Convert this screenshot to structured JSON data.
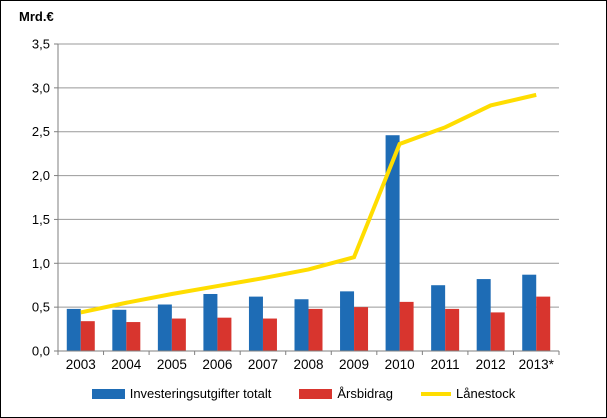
{
  "colors": {
    "bar_investeringar": "#1E6CB5",
    "bar_arsbidrag": "#D8352E",
    "line_lanestock": "#FFDD00",
    "grid": "#999999",
    "axis": "#7F7F7F",
    "text": "#000000"
  },
  "chart_data": {
    "type": "bar",
    "subtype": "grouped-bars-with-line",
    "title": "",
    "ylabel": "Mrd.€",
    "xlabel": "",
    "categories": [
      "2003",
      "2004",
      "2005",
      "2006",
      "2007",
      "2008",
      "2009",
      "2010",
      "2011",
      "2012",
      "2013*"
    ],
    "series": [
      {
        "name": "Investeringsutgifter totalt",
        "type": "bar",
        "color": "#1E6CB5",
        "values": [
          0.48,
          0.47,
          0.53,
          0.65,
          0.62,
          0.59,
          0.68,
          2.46,
          0.75,
          0.82,
          0.87
        ]
      },
      {
        "name": "Årsbidrag",
        "type": "bar",
        "color": "#D8352E",
        "values": [
          0.34,
          0.33,
          0.37,
          0.38,
          0.37,
          0.48,
          0.5,
          0.56,
          0.48,
          0.44,
          0.62
        ]
      },
      {
        "name": "Lånestock",
        "type": "line",
        "color": "#FFDD00",
        "values": [
          0.44,
          0.55,
          0.65,
          0.74,
          0.83,
          0.93,
          1.07,
          2.36,
          2.55,
          2.8,
          2.92
        ]
      }
    ],
    "ylim": [
      0,
      3.5
    ],
    "ytick_step": 0.5,
    "ytick_labels": [
      "0,0",
      "0,5",
      "1,0",
      "1,5",
      "2,0",
      "2,5",
      "3,0",
      "3,5"
    ],
    "grid": true,
    "legend_position": "bottom"
  }
}
